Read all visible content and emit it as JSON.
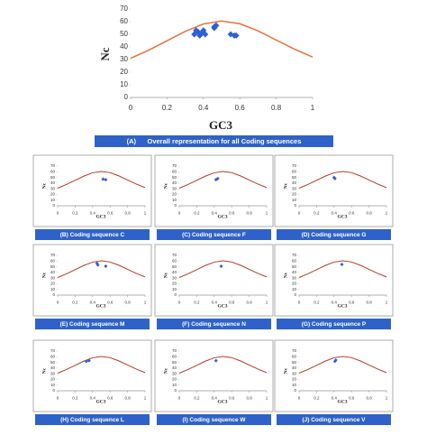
{
  "chart_data": [
    {
      "type": "scatter",
      "caption": "(A)      Overall representation for all Coding sequences",
      "xlabel": "GC3",
      "ylabel": "Nc",
      "xlim": [
        0,
        1
      ],
      "ylim": [
        0,
        70
      ],
      "xticks": [
        0,
        0.2,
        0.4,
        0.6,
        0.8,
        1
      ],
      "yticks": [
        0,
        10,
        20,
        30,
        40,
        50,
        60,
        70
      ],
      "series": [
        {
          "type": "line",
          "color": "#e8703a",
          "x": [
            0,
            0.1,
            0.2,
            0.3,
            0.4,
            0.5,
            0.6,
            0.7,
            0.8,
            0.9,
            1
          ],
          "values": [
            31,
            37.47,
            44.85,
            52.3,
            58.17,
            60.5,
            58.37,
            52.7,
            45.45,
            38.27,
            32
          ]
        },
        {
          "type": "scatter",
          "color": "#2e5fd4",
          "x": [
            0.35,
            0.36,
            0.37,
            0.38,
            0.39,
            0.4,
            0.41,
            0.46,
            0.47,
            0.46,
            0.55,
            0.57,
            0.58
          ],
          "values": [
            50,
            53,
            52,
            49,
            51,
            53,
            50,
            55,
            57,
            56,
            50,
            49,
            49
          ]
        }
      ]
    },
    {
      "type": "scatter",
      "caption": "(B) Coding sequence C",
      "xlabel": "GC3",
      "ylabel": "Nc",
      "xlim": [
        0,
        1
      ],
      "ylim": [
        0,
        70
      ],
      "xticks": [
        0,
        0.2,
        0.4,
        0.6,
        0.8,
        1
      ],
      "yticks": [
        0,
        10,
        20,
        30,
        40,
        50,
        60,
        70
      ],
      "series": [
        {
          "type": "line",
          "color": "#b03a2e",
          "x": [
            0,
            0.1,
            0.2,
            0.3,
            0.4,
            0.5,
            0.6,
            0.7,
            0.8,
            0.9,
            1
          ],
          "values": [
            31,
            37.47,
            44.85,
            52.3,
            58.17,
            60.5,
            58.37,
            52.7,
            45.45,
            38.27,
            32
          ]
        },
        {
          "type": "scatter",
          "color": "#2e5fd4",
          "x": [
            0.52,
            0.55
          ],
          "values": [
            47,
            46
          ]
        }
      ]
    },
    {
      "type": "scatter",
      "caption": "(C) Coding sequence F",
      "xlabel": "GC3",
      "ylabel": "Nc",
      "xlim": [
        0,
        1
      ],
      "ylim": [
        0,
        70
      ],
      "xticks": [
        0,
        0.2,
        0.4,
        0.6,
        0.8,
        1
      ],
      "yticks": [
        0,
        10,
        20,
        30,
        40,
        50,
        60,
        70
      ],
      "series": [
        {
          "type": "line",
          "color": "#b03a2e",
          "x": [
            0,
            0.1,
            0.2,
            0.3,
            0.4,
            0.5,
            0.6,
            0.7,
            0.8,
            0.9,
            1
          ],
          "values": [
            31,
            37.47,
            44.85,
            52.3,
            58.17,
            60.5,
            58.37,
            52.7,
            45.45,
            38.27,
            32
          ]
        },
        {
          "type": "scatter",
          "color": "#2e5fd4",
          "x": [
            0.42,
            0.44
          ],
          "values": [
            46,
            48
          ]
        }
      ]
    },
    {
      "type": "scatter",
      "caption": "(D) Coding sequence G",
      "xlabel": "GC3",
      "ylabel": "Nc",
      "xlim": [
        0,
        1
      ],
      "ylim": [
        0,
        70
      ],
      "xticks": [
        0,
        0.2,
        0.4,
        0.6,
        0.8,
        1
      ],
      "yticks": [
        0,
        10,
        20,
        30,
        40,
        50,
        60,
        70
      ],
      "series": [
        {
          "type": "line",
          "color": "#b03a2e",
          "x": [
            0,
            0.1,
            0.2,
            0.3,
            0.4,
            0.5,
            0.6,
            0.7,
            0.8,
            0.9,
            1
          ],
          "values": [
            31,
            37.47,
            44.85,
            52.3,
            58.17,
            60.5,
            58.37,
            52.7,
            45.45,
            38.27,
            32
          ]
        },
        {
          "type": "scatter",
          "color": "#2e5fd4",
          "x": [
            0.4,
            0.41
          ],
          "values": [
            50,
            48
          ]
        }
      ]
    },
    {
      "type": "scatter",
      "caption": "(E) Coding sequence M",
      "xlabel": "GC3",
      "ylabel": "Nc",
      "xlim": [
        0,
        1
      ],
      "ylim": [
        0,
        70
      ],
      "xticks": [
        0,
        0.2,
        0.4,
        0.6,
        0.8,
        1
      ],
      "yticks": [
        0,
        10,
        20,
        30,
        40,
        50,
        60,
        70
      ],
      "series": [
        {
          "type": "line",
          "color": "#b03a2e",
          "x": [
            0,
            0.1,
            0.2,
            0.3,
            0.4,
            0.5,
            0.6,
            0.7,
            0.8,
            0.9,
            1
          ],
          "values": [
            31,
            37.47,
            44.85,
            52.3,
            58.17,
            60.5,
            58.37,
            52.7,
            45.45,
            38.27,
            32
          ]
        },
        {
          "type": "scatter",
          "color": "#2e5fd4",
          "x": [
            0.45,
            0.46,
            0.55
          ],
          "values": [
            56,
            53,
            51
          ]
        }
      ]
    },
    {
      "type": "scatter",
      "caption": "(F) Coding sequence N",
      "xlabel": "GC3",
      "ylabel": "Nc",
      "xlim": [
        0,
        1
      ],
      "ylim": [
        0,
        70
      ],
      "xticks": [
        0,
        0.2,
        0.4,
        0.6,
        0.8,
        1
      ],
      "yticks": [
        0,
        10,
        20,
        30,
        40,
        50,
        60,
        70
      ],
      "series": [
        {
          "type": "line",
          "color": "#b03a2e",
          "x": [
            0,
            0.1,
            0.2,
            0.3,
            0.4,
            0.5,
            0.6,
            0.7,
            0.8,
            0.9,
            1
          ],
          "values": [
            31,
            37.47,
            44.85,
            52.3,
            58.17,
            60.5,
            58.37,
            52.7,
            45.45,
            38.27,
            32
          ]
        },
        {
          "type": "scatter",
          "color": "#2e5fd4",
          "x": [
            0.48
          ],
          "values": [
            51
          ]
        }
      ]
    },
    {
      "type": "scatter",
      "caption": "(G) Coding sequence P",
      "xlabel": "GC3",
      "ylabel": "Nc",
      "xlim": [
        0,
        1
      ],
      "ylim": [
        0,
        70
      ],
      "xticks": [
        0,
        0.2,
        0.4,
        0.6,
        0.8,
        1
      ],
      "yticks": [
        0,
        10,
        20,
        30,
        40,
        50,
        60,
        70
      ],
      "series": [
        {
          "type": "line",
          "color": "#b03a2e",
          "x": [
            0,
            0.1,
            0.2,
            0.3,
            0.4,
            0.5,
            0.6,
            0.7,
            0.8,
            0.9,
            1
          ],
          "values": [
            31,
            37.47,
            44.85,
            52.3,
            58.17,
            60.5,
            58.37,
            52.7,
            45.45,
            38.27,
            32
          ]
        },
        {
          "type": "scatter",
          "color": "#2e5fd4",
          "x": [
            0.49
          ],
          "values": [
            54
          ]
        }
      ]
    },
    {
      "type": "scatter",
      "caption": "(H) Coding sequence L",
      "xlabel": "GC3",
      "ylabel": "Nc",
      "xlim": [
        0,
        1
      ],
      "ylim": [
        0,
        70
      ],
      "xticks": [
        0,
        0.2,
        0.4,
        0.6,
        0.8,
        1
      ],
      "yticks": [
        0,
        10,
        20,
        30,
        40,
        50,
        60,
        70
      ],
      "series": [
        {
          "type": "line",
          "color": "#b03a2e",
          "x": [
            0,
            0.1,
            0.2,
            0.3,
            0.4,
            0.5,
            0.6,
            0.7,
            0.8,
            0.9,
            1
          ],
          "values": [
            31,
            37.47,
            44.85,
            52.3,
            58.17,
            60.5,
            58.37,
            52.7,
            45.45,
            38.27,
            32
          ]
        },
        {
          "type": "scatter",
          "color": "#2e5fd4",
          "x": [
            0.33,
            0.36
          ],
          "values": [
            52,
            53
          ]
        }
      ]
    },
    {
      "type": "scatter",
      "caption": "(I) Coding sequence W",
      "xlabel": "GC3",
      "ylabel": "Nc",
      "xlim": [
        0,
        1
      ],
      "ylim": [
        0,
        70
      ],
      "xticks": [
        0,
        0.2,
        0.4,
        0.6,
        0.8,
        1
      ],
      "yticks": [
        0,
        10,
        20,
        30,
        40,
        50,
        60,
        70
      ],
      "series": [
        {
          "type": "line",
          "color": "#b03a2e",
          "x": [
            0,
            0.1,
            0.2,
            0.3,
            0.4,
            0.5,
            0.6,
            0.7,
            0.8,
            0.9,
            1
          ],
          "values": [
            31,
            37.47,
            44.85,
            52.3,
            58.17,
            60.5,
            58.37,
            52.7,
            45.45,
            38.27,
            32
          ]
        },
        {
          "type": "scatter",
          "color": "#2e5fd4",
          "x": [
            0.42
          ],
          "values": [
            53
          ]
        }
      ]
    },
    {
      "type": "scatter",
      "caption": "(J) Coding sequence V",
      "xlabel": "GC3",
      "ylabel": "Nc",
      "xlim": [
        0,
        1
      ],
      "ylim": [
        0,
        70
      ],
      "xticks": [
        0,
        0.2,
        0.4,
        0.6,
        0.8,
        1
      ],
      "yticks": [
        0,
        10,
        20,
        30,
        40,
        50,
        60,
        70
      ],
      "series": [
        {
          "type": "line",
          "color": "#b03a2e",
          "x": [
            0,
            0.1,
            0.2,
            0.3,
            0.4,
            0.5,
            0.6,
            0.7,
            0.8,
            0.9,
            1
          ],
          "values": [
            31,
            37.47,
            44.85,
            52.3,
            58.17,
            60.5,
            58.37,
            52.7,
            45.45,
            38.27,
            32
          ]
        },
        {
          "type": "scatter",
          "color": "#2e5fd4",
          "x": [
            0.41,
            0.42
          ],
          "values": [
            52,
            54
          ]
        }
      ]
    }
  ]
}
